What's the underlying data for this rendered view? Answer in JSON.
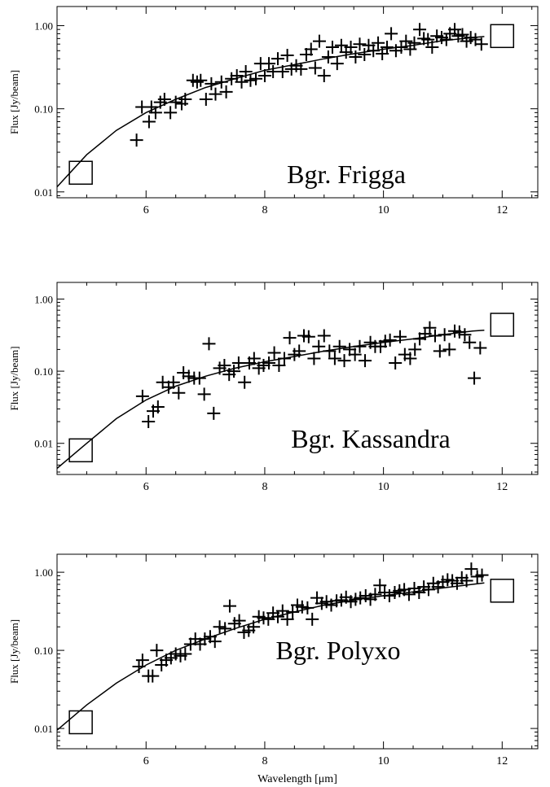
{
  "figure": {
    "xlabel": "Wavelength [μm]",
    "ylabel": "Flux [Jy/beam]",
    "ink_color": "#000000",
    "background": "#ffffff"
  },
  "chart_data": [
    {
      "type": "scatter",
      "title": "Bgr. Frigga",
      "ylabel": "Flux [Jy/beam]",
      "xlabel": "",
      "xlim": [
        4.5,
        12.6
      ],
      "ylim": [
        0.0085,
        1.7
      ],
      "yscale": "log",
      "x_ticks": [
        6,
        8,
        10,
        12
      ],
      "x_tick_labels": [
        "6",
        "8",
        "10",
        "12"
      ],
      "y_ticks": [
        0.01,
        0.1,
        1.0
      ],
      "y_tick_labels": [
        "0.01",
        "0.10",
        "1.00"
      ],
      "marker_spectrum": {
        "x": [
          5.84,
          5.93,
          6.05,
          6.09,
          6.16,
          6.24,
          6.31,
          6.41,
          6.5,
          6.6,
          6.66,
          6.79,
          6.86,
          6.92,
          7.01,
          7.1,
          7.17,
          7.27,
          7.35,
          7.44,
          7.53,
          7.61,
          7.68,
          7.76,
          7.85,
          7.93,
          8.0,
          8.07,
          8.14,
          8.22,
          8.3,
          8.38,
          8.45,
          8.53,
          8.61,
          8.7,
          8.78,
          8.85,
          8.92,
          9.0,
          9.07,
          9.14,
          9.22,
          9.29,
          9.37,
          9.45,
          9.53,
          9.6,
          9.68,
          9.75,
          9.83,
          9.91,
          9.98,
          10.06,
          10.13,
          10.21,
          10.3,
          10.38,
          10.45,
          10.52,
          10.61,
          10.68,
          10.75,
          10.82,
          10.9,
          10.98,
          11.06,
          11.12,
          11.2,
          11.26,
          11.33,
          11.4,
          11.47,
          11.55,
          11.65
        ],
        "y": [
          0.042,
          0.105,
          0.07,
          0.105,
          0.09,
          0.12,
          0.13,
          0.09,
          0.12,
          0.115,
          0.13,
          0.22,
          0.21,
          0.22,
          0.13,
          0.2,
          0.15,
          0.21,
          0.16,
          0.23,
          0.25,
          0.21,
          0.28,
          0.22,
          0.23,
          0.35,
          0.25,
          0.35,
          0.28,
          0.4,
          0.28,
          0.44,
          0.3,
          0.33,
          0.3,
          0.45,
          0.52,
          0.31,
          0.65,
          0.25,
          0.42,
          0.55,
          0.35,
          0.58,
          0.48,
          0.55,
          0.42,
          0.6,
          0.45,
          0.58,
          0.5,
          0.62,
          0.46,
          0.55,
          0.8,
          0.5,
          0.55,
          0.65,
          0.52,
          0.62,
          0.9,
          0.7,
          0.68,
          0.55,
          0.75,
          0.72,
          0.68,
          0.8,
          0.9,
          0.75,
          0.78,
          0.65,
          0.72,
          0.68,
          0.6
        ]
      },
      "photometry": {
        "x": [
          4.9,
          12.0
        ],
        "y": [
          0.017,
          0.75
        ]
      },
      "model_curve": {
        "x": [
          4.5,
          5.0,
          5.5,
          6.0,
          6.5,
          7.0,
          7.5,
          8.0,
          8.5,
          9.0,
          9.5,
          10.0,
          10.5,
          11.0,
          11.5,
          11.7
        ],
        "y": [
          0.0115,
          0.028,
          0.055,
          0.09,
          0.13,
          0.18,
          0.23,
          0.29,
          0.34,
          0.4,
          0.46,
          0.52,
          0.58,
          0.66,
          0.72,
          0.74
        ]
      }
    },
    {
      "type": "scatter",
      "title": "Bgr. Kassandra",
      "ylabel": "Flux [Jy/beam]",
      "xlabel": "",
      "xlim": [
        4.5,
        12.6
      ],
      "ylim": [
        0.0037,
        1.7
      ],
      "yscale": "log",
      "x_ticks": [
        6,
        8,
        10,
        12
      ],
      "x_tick_labels": [
        "6",
        "8",
        "10",
        "12"
      ],
      "y_ticks": [
        0.01,
        0.1,
        1.0
      ],
      "y_tick_labels": [
        "0.01",
        "0.10",
        "1.00"
      ],
      "marker_spectrum": {
        "x": [
          5.94,
          6.04,
          6.12,
          6.2,
          6.28,
          6.38,
          6.46,
          6.55,
          6.63,
          6.72,
          6.81,
          6.9,
          6.98,
          7.06,
          7.14,
          7.24,
          7.32,
          7.4,
          7.48,
          7.56,
          7.66,
          7.74,
          7.82,
          7.9,
          7.98,
          8.07,
          8.16,
          8.24,
          8.33,
          8.42,
          8.5,
          8.58,
          8.66,
          8.74,
          8.83,
          8.91,
          9.0,
          9.09,
          9.18,
          9.26,
          9.34,
          9.43,
          9.52,
          9.6,
          9.69,
          9.78,
          9.86,
          9.95,
          10.03,
          10.11,
          10.2,
          10.28,
          10.36,
          10.45,
          10.53,
          10.61,
          10.7,
          10.78,
          10.87,
          10.95,
          11.03,
          11.11,
          11.2,
          11.28,
          11.37,
          11.45,
          11.53,
          11.63
        ],
        "y": [
          0.045,
          0.02,
          0.028,
          0.032,
          0.07,
          0.06,
          0.07,
          0.05,
          0.095,
          0.085,
          0.08,
          0.08,
          0.048,
          0.24,
          0.026,
          0.11,
          0.12,
          0.09,
          0.1,
          0.13,
          0.07,
          0.13,
          0.15,
          0.11,
          0.12,
          0.13,
          0.18,
          0.12,
          0.15,
          0.29,
          0.17,
          0.19,
          0.31,
          0.3,
          0.15,
          0.22,
          0.31,
          0.19,
          0.15,
          0.22,
          0.14,
          0.2,
          0.17,
          0.22,
          0.14,
          0.25,
          0.22,
          0.22,
          0.26,
          0.27,
          0.13,
          0.3,
          0.17,
          0.15,
          0.2,
          0.28,
          0.33,
          0.4,
          0.31,
          0.19,
          0.32,
          0.2,
          0.36,
          0.35,
          0.32,
          0.25,
          0.08,
          0.21
        ]
      },
      "photometry": {
        "x": [
          4.9,
          12.0
        ],
        "y": [
          0.008,
          0.44
        ]
      },
      "model_curve": {
        "x": [
          4.5,
          5.0,
          5.5,
          6.0,
          6.5,
          7.0,
          7.5,
          8.0,
          8.5,
          9.0,
          9.5,
          10.0,
          10.5,
          11.0,
          11.5,
          11.7
        ],
        "y": [
          0.0045,
          0.01,
          0.022,
          0.04,
          0.062,
          0.085,
          0.11,
          0.135,
          0.16,
          0.19,
          0.22,
          0.25,
          0.28,
          0.32,
          0.36,
          0.37
        ]
      }
    },
    {
      "type": "scatter",
      "title": "Bgr. Polyxo",
      "ylabel": "Flux [Jy/beam]",
      "xlabel": "Wavelength [μm]",
      "xlim": [
        4.5,
        12.6
      ],
      "ylim": [
        0.0055,
        1.7
      ],
      "yscale": "log",
      "x_ticks": [
        6,
        8,
        10,
        12
      ],
      "x_tick_labels": [
        "6",
        "8",
        "10",
        "12"
      ],
      "y_ticks": [
        0.01,
        0.1,
        1.0
      ],
      "y_tick_labels": [
        "0.01",
        "0.10",
        "1.00"
      ],
      "marker_spectrum": {
        "x": [
          5.88,
          5.94,
          6.04,
          6.11,
          6.18,
          6.26,
          6.34,
          6.42,
          6.5,
          6.58,
          6.66,
          6.75,
          6.83,
          6.91,
          6.99,
          7.08,
          7.16,
          7.24,
          7.33,
          7.41,
          7.49,
          7.57,
          7.65,
          7.73,
          7.81,
          7.9,
          7.98,
          8.06,
          8.14,
          8.22,
          8.3,
          8.38,
          8.47,
          8.55,
          8.63,
          8.72,
          8.8,
          8.88,
          8.96,
          9.04,
          9.12,
          9.21,
          9.29,
          9.37,
          9.45,
          9.53,
          9.61,
          9.7,
          9.78,
          9.86,
          9.94,
          10.02,
          10.1,
          10.19,
          10.27,
          10.35,
          10.43,
          10.52,
          10.6,
          10.68,
          10.76,
          10.84,
          10.92,
          11.0,
          11.08,
          11.16,
          11.24,
          11.32,
          11.4,
          11.48,
          11.58,
          11.66
        ],
        "y": [
          0.062,
          0.075,
          0.047,
          0.047,
          0.1,
          0.065,
          0.075,
          0.08,
          0.09,
          0.085,
          0.09,
          0.12,
          0.14,
          0.12,
          0.14,
          0.15,
          0.13,
          0.2,
          0.19,
          0.37,
          0.22,
          0.24,
          0.17,
          0.18,
          0.2,
          0.27,
          0.26,
          0.25,
          0.3,
          0.27,
          0.32,
          0.25,
          0.31,
          0.38,
          0.36,
          0.35,
          0.25,
          0.47,
          0.4,
          0.42,
          0.38,
          0.43,
          0.44,
          0.48,
          0.42,
          0.45,
          0.47,
          0.5,
          0.45,
          0.52,
          0.68,
          0.55,
          0.5,
          0.55,
          0.58,
          0.6,
          0.52,
          0.62,
          0.55,
          0.65,
          0.6,
          0.72,
          0.65,
          0.75,
          0.8,
          0.78,
          0.72,
          0.85,
          0.78,
          1.1,
          0.88,
          0.92
        ]
      },
      "photometry": {
        "x": [
          4.9,
          12.0
        ],
        "y": [
          0.012,
          0.58
        ]
      },
      "model_curve": {
        "x": [
          4.5,
          5.0,
          5.5,
          6.0,
          6.5,
          7.0,
          7.5,
          8.0,
          8.5,
          9.0,
          9.5,
          10.0,
          10.5,
          11.0,
          11.5,
          11.7
        ],
        "y": [
          0.0095,
          0.02,
          0.038,
          0.065,
          0.1,
          0.14,
          0.19,
          0.25,
          0.31,
          0.38,
          0.44,
          0.5,
          0.56,
          0.63,
          0.7,
          0.73
        ]
      }
    }
  ]
}
